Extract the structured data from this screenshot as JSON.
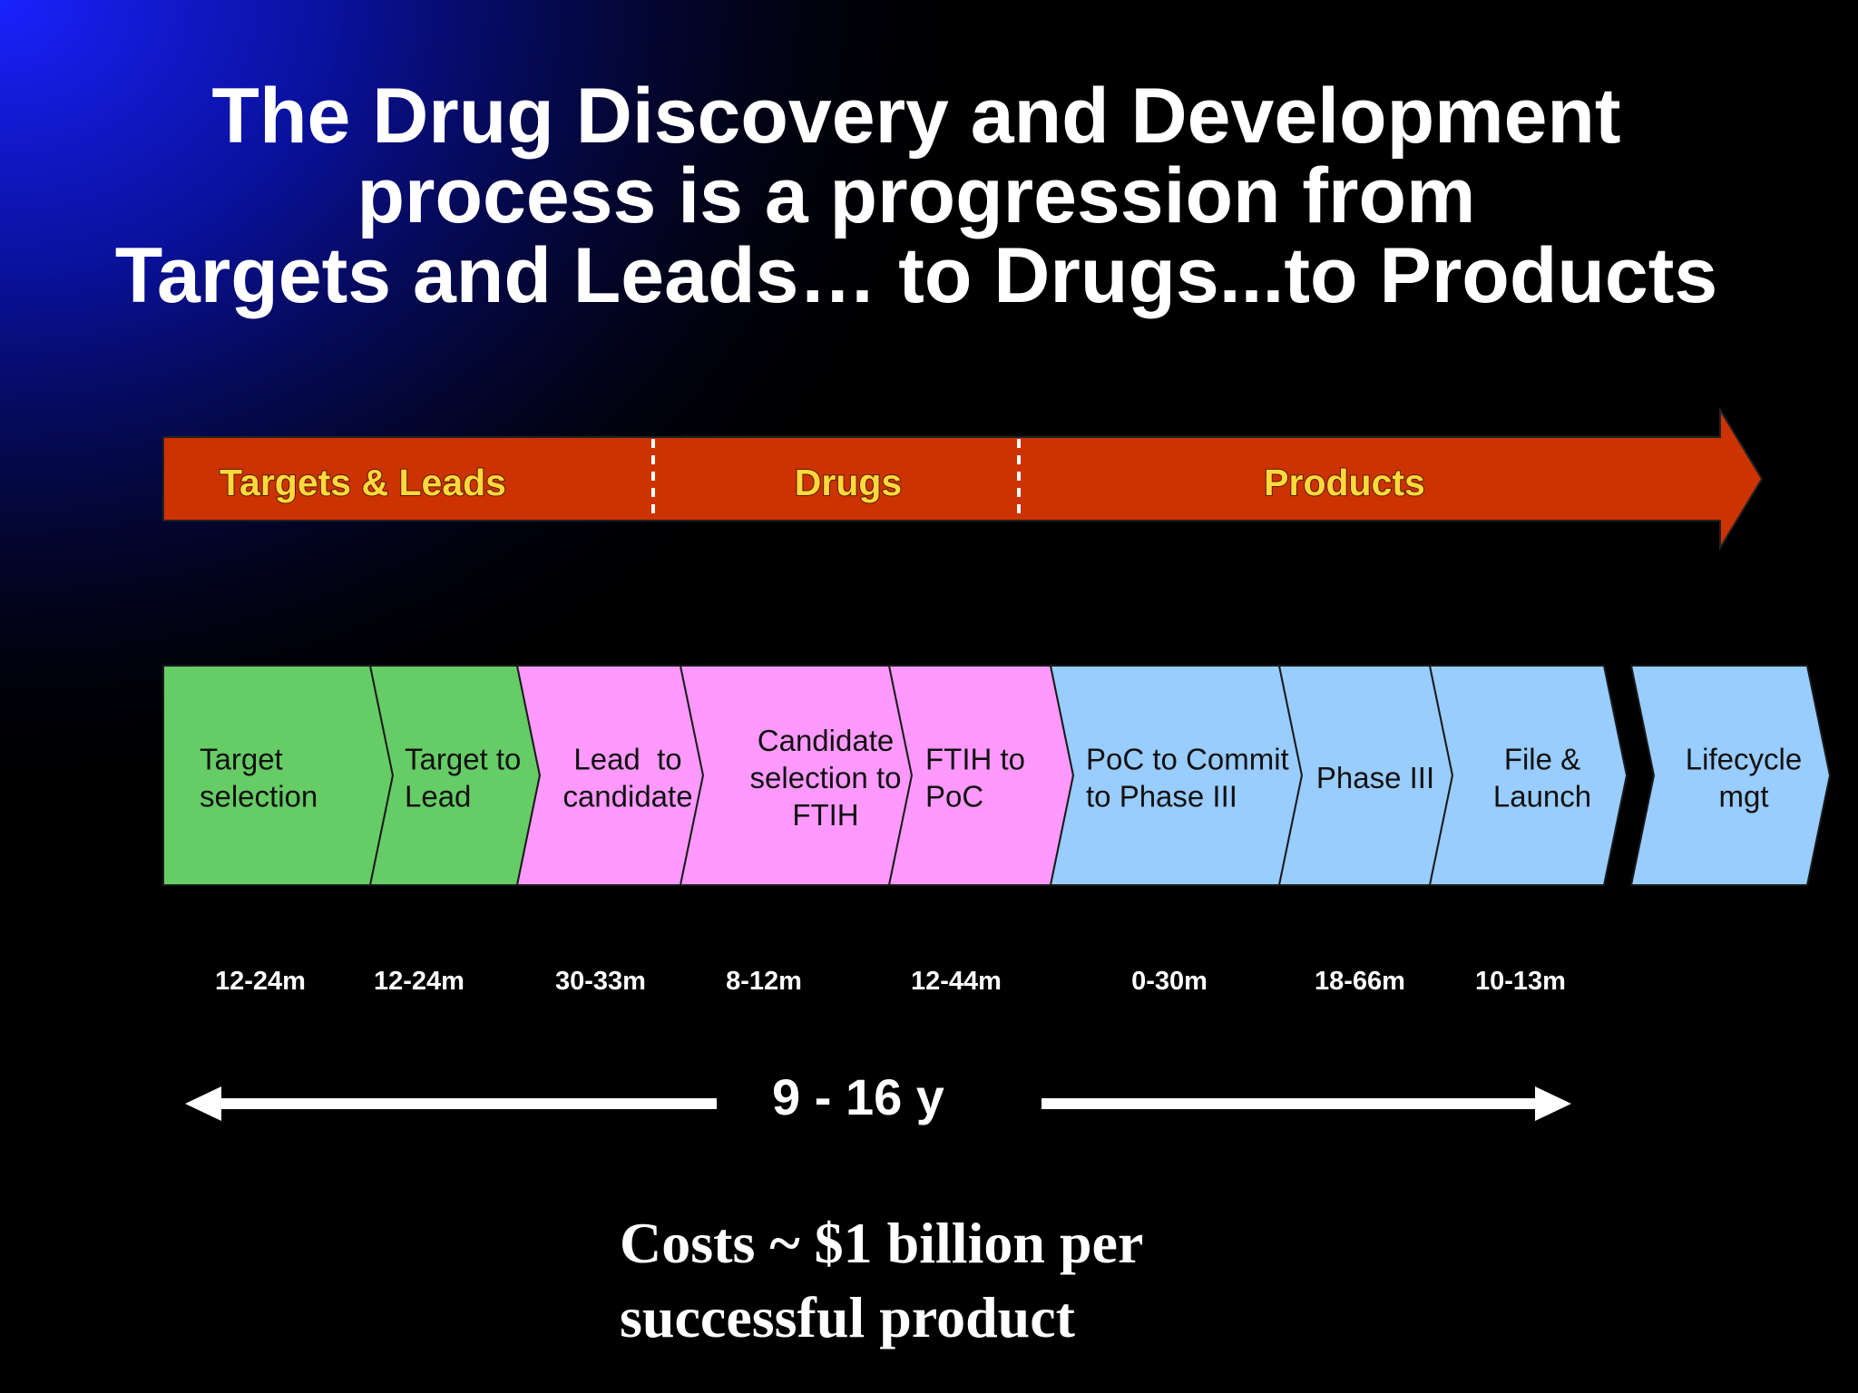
{
  "title": {
    "lines": [
      "The Drug Discovery and Development",
      "process is a progression from",
      "Targets and Leads… to Drugs...to Products"
    ]
  },
  "colors": {
    "background": "#000000",
    "gradient_blue": "#1a22ff",
    "phase_arrow": "#cc3300",
    "phase_label": "#ffd93b",
    "stage_green": "#66cc66",
    "stage_pink": "#ff99ff",
    "stage_blue": "#99ccff",
    "text_white": "#ffffff"
  },
  "phases": [
    {
      "label": "Targets & Leads"
    },
    {
      "label": "Drugs"
    },
    {
      "label": "Products"
    }
  ],
  "stages": [
    {
      "lines": [
        "Target",
        "selection"
      ],
      "color": "stage_green"
    },
    {
      "lines": [
        "Target to",
        "Lead"
      ],
      "color": "stage_green"
    },
    {
      "lines": [
        "Lead  to",
        "candidate"
      ],
      "color": "stage_pink"
    },
    {
      "lines": [
        "Candidate",
        "selection to",
        "FTIH"
      ],
      "color": "stage_pink"
    },
    {
      "lines": [
        "FTIH to",
        "PoC"
      ],
      "color": "stage_pink"
    },
    {
      "lines": [
        "PoC to Commit",
        "to Phase III"
      ],
      "color": "stage_blue"
    },
    {
      "lines": [
        "Phase III"
      ],
      "color": "stage_blue"
    },
    {
      "lines": [
        "File &",
        "Launch"
      ],
      "color": "stage_blue"
    },
    {
      "lines": [
        "Lifecycle",
        "mgt"
      ],
      "color": "stage_blue"
    }
  ],
  "durations": [
    "12-24m",
    "12-24m",
    "30-33m",
    "8-12m",
    "12-44m",
    "0-30m",
    "18-66m",
    "10-13m"
  ],
  "total_span": {
    "label": "9 - 16 y"
  },
  "costs": {
    "lines": [
      "Costs ~ $1 billion per",
      "successful product"
    ]
  }
}
